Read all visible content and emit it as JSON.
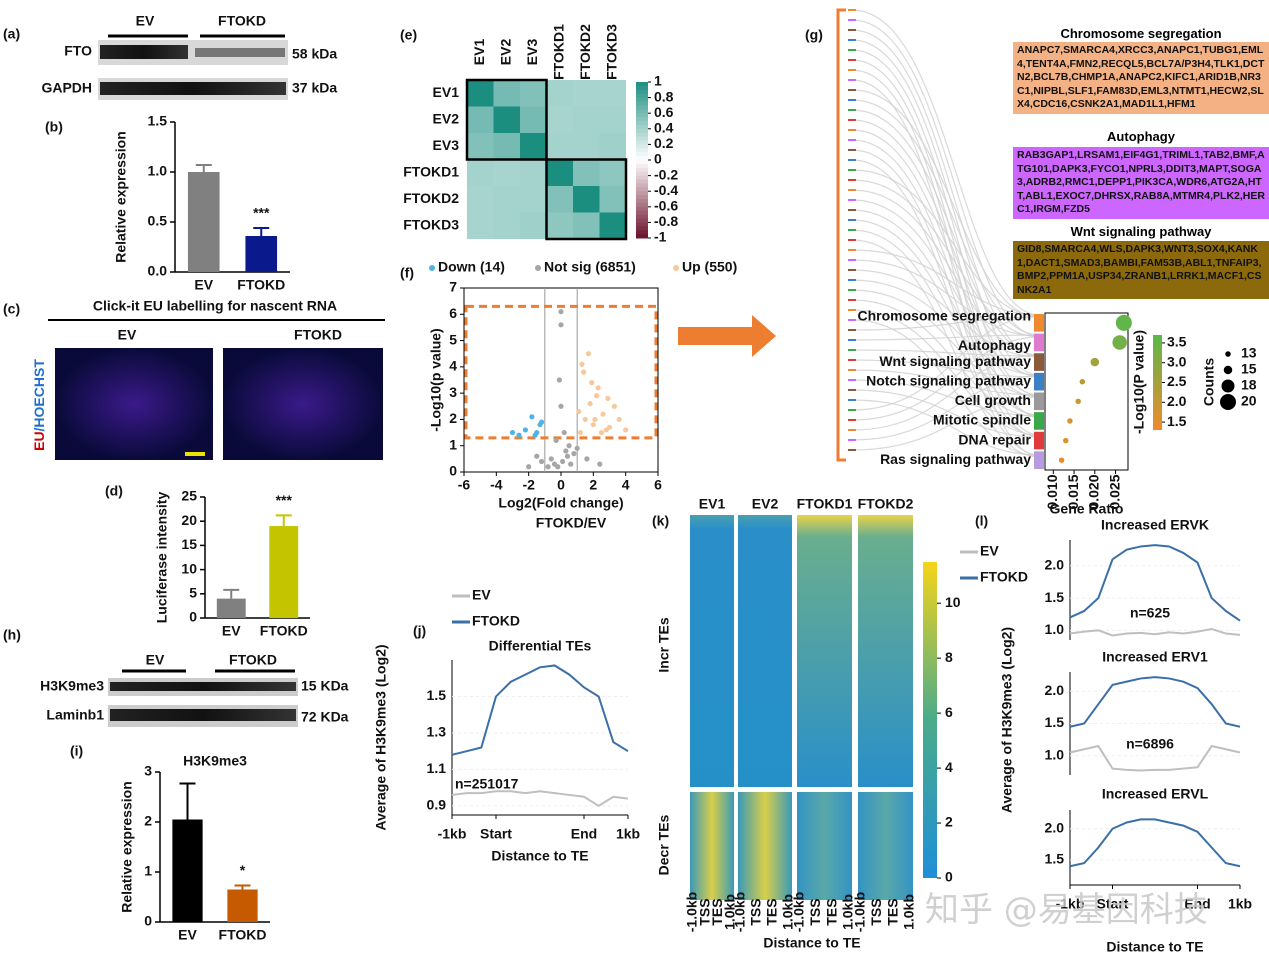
{
  "chart_data": [
    {
      "type": "bar",
      "categories": [
        "EV",
        "FTOKD"
      ],
      "values": [
        1.0,
        0.36
      ],
      "errors": [
        0.07,
        0.08
      ],
      "colors": [
        "#808080",
        "#0a1a8c"
      ],
      "ylim": [
        0,
        1.5
      ],
      "yticks": [
        {
          "value": 0,
          "label": "0.0"
        },
        {
          "value": 0.5,
          "label": "0.5"
        },
        {
          "value": 1,
          "label": "1.0"
        },
        {
          "value": 1.5,
          "label": "1.5"
        }
      ],
      "ylabel": "Relative expression",
      "annotation": "***"
    },
    {
      "type": "bar",
      "categories": [
        "EV",
        "FTOKD"
      ],
      "values": [
        4,
        19
      ],
      "errors": [
        1.8,
        2.2
      ],
      "colors": [
        "#808080",
        "#c4c400"
      ],
      "ylim": [
        0,
        25
      ],
      "yticks": [
        0,
        5,
        10,
        15,
        20,
        25
      ],
      "ylabel": "Luciferase intensity",
      "annotation": "***"
    },
    {
      "type": "bar",
      "title": "H3K9me3",
      "categories": [
        "EV",
        "FTOKD"
      ],
      "values": [
        2.05,
        0.65
      ],
      "errors": [
        0.72,
        0.08
      ],
      "colors": [
        "#000000",
        "#c55a00"
      ],
      "ylim": [
        0,
        3
      ],
      "yticks": [
        0,
        1,
        2,
        3
      ],
      "ylabel": "Relative expression",
      "annotation": "*"
    },
    {
      "type": "heatmap",
      "rows": [
        "EV1",
        "EV2",
        "EV3",
        "FTOKD1",
        "FTOKD2",
        "FTOKD3"
      ],
      "columns": [
        "EV1",
        "EV2",
        "EV3",
        "FTOKD1",
        "FTOKD2",
        "FTOKD3"
      ],
      "values": [
        [
          1,
          0.6,
          0.55,
          0.4,
          0.38,
          0.38
        ],
        [
          0.6,
          1,
          0.6,
          0.38,
          0.4,
          0.4
        ],
        [
          0.55,
          0.6,
          1,
          0.4,
          0.4,
          0.42
        ],
        [
          0.4,
          0.38,
          0.4,
          1,
          0.55,
          0.5
        ],
        [
          0.38,
          0.4,
          0.4,
          0.55,
          1,
          0.55
        ],
        [
          0.38,
          0.4,
          0.42,
          0.5,
          0.55,
          1
        ]
      ],
      "zlim": [
        -1,
        1
      ],
      "zticks": [
        1,
        0.8,
        0.6,
        0.4,
        0.2,
        0,
        -0.2,
        -0.4,
        -0.6,
        -0.8,
        -1
      ]
    },
    {
      "type": "scatter",
      "subtitle": "FTOKD/EV",
      "xlabel": "Log2(Fold change)",
      "ylabel": "-Log10(p value)",
      "xlim": [
        -6,
        6
      ],
      "xticks": [
        -6,
        -4,
        -2,
        0,
        2,
        4,
        6
      ],
      "ylim": [
        0,
        7
      ],
      "yticks": [
        0,
        1,
        2,
        3,
        4,
        5,
        6,
        7
      ],
      "thresholds_x": [
        -1,
        1
      ],
      "threshold_y": 1.3,
      "series": [
        {
          "name": "Down (14)",
          "color": "#4fb3e8",
          "x": [
            -1.5,
            -2.2,
            -1.8,
            -2.6,
            -1.3,
            -3.0,
            -1.6,
            -1.2
          ],
          "y": [
            1.5,
            1.6,
            2.1,
            1.4,
            1.8,
            1.5,
            1.4,
            1.9
          ]
        },
        {
          "name": "Not sig (6851)",
          "color": "#a6a6a6",
          "x": [
            -0.2,
            0.1,
            0.3,
            -0.4,
            0.5,
            -0.6,
            0.2,
            0,
            -0.1,
            0.4,
            -0.8,
            0.8,
            -1.2,
            1.0,
            -0.3,
            0.6,
            -2,
            1.6,
            2.4,
            -1.5,
            0,
            0
          ],
          "y": [
            0.2,
            0.4,
            0.8,
            0.3,
            1.0,
            0.5,
            1.5,
            2.5,
            3.5,
            0.6,
            0.2,
            0.7,
            0.4,
            0.9,
            1.2,
            0.3,
            0.2,
            0.5,
            0.3,
            0.6,
            5.6,
            6.1
          ]
        },
        {
          "name": "Up (550)",
          "color": "#f7c89b",
          "x": [
            1.2,
            1.5,
            1.8,
            2.0,
            2.3,
            2.6,
            3.0,
            3.3,
            1.4,
            1.7,
            2.2,
            2.8,
            3.6,
            1.1,
            1.9,
            2.5,
            4.0,
            1.3,
            2.1,
            2.9
          ],
          "y": [
            1.5,
            2.0,
            2.6,
            1.8,
            3.2,
            2.2,
            1.7,
            2.5,
            3.8,
            4.5,
            2.9,
            1.6,
            2.0,
            2.3,
            3.4,
            1.5,
            1.6,
            4.1,
            2.0,
            2.8
          ]
        }
      ]
    },
    {
      "type": "dot",
      "categories": [
        "Chromosome segregation",
        "Autophagy",
        "Wnt signaling pathway",
        "Notch signaling pathway",
        "Cell growth",
        "Mitotic spindle",
        "DNA repair",
        "Ras signaling pathway"
      ],
      "category_colors": [
        "#f08a2c",
        "#e07ad0",
        "#8b5a3c",
        "#3b7fc4",
        "#9a9a9a",
        "#3aa84a",
        "#e03a3a",
        "#b89ae0"
      ],
      "x": [
        0.027,
        0.026,
        0.02,
        0.017,
        0.016,
        0.014,
        0.013,
        0.012
      ],
      "pvalues": [
        3.6,
        3.3,
        2.6,
        2.2,
        1.9,
        1.7,
        1.6,
        1.4
      ],
      "sizes": [
        20,
        19,
        15,
        13,
        13,
        13,
        13,
        13
      ],
      "xlim": [
        0.008,
        0.028
      ],
      "xticks": [
        {
          "value": 0.01,
          "label": "0.010"
        },
        0.015,
        {
          "value": 0.02,
          "label": "0.020"
        },
        0.025
      ],
      "xlabel": "Gene Ratio",
      "clim": [
        1.3,
        3.7
      ],
      "cticks": [
        {
          "value": 1.5,
          "label": "1.5"
        },
        {
          "value": 2,
          "label": "2.0"
        },
        {
          "value": 2.5,
          "label": "2.5"
        },
        {
          "value": 3,
          "label": "3.0"
        },
        {
          "value": 3.5,
          "label": "3.5"
        }
      ],
      "ctitle": "-Log10(P value)",
      "size_title": "Counts",
      "size_ticks": [
        13,
        15,
        18,
        20
      ]
    },
    {
      "type": "line",
      "title": "Differential TEs",
      "annotation": "n=251017",
      "xlabel": "Distance to TE",
      "ylabel": "Average of H3K9me3 (Log2)",
      "legend": "top-left",
      "x": [
        0,
        1,
        2,
        3,
        4,
        5,
        6,
        7,
        8,
        9,
        10,
        11,
        12
      ],
      "xlim": [
        0,
        12
      ],
      "xticks": [
        {
          "value": 0,
          "label": "-1kb"
        },
        {
          "value": 3,
          "label": "Start"
        },
        {
          "value": 9,
          "label": "End"
        },
        {
          "value": 12,
          "label": "1kb"
        }
      ],
      "ylim": [
        0.85,
        1.7
      ],
      "yticks": [
        0.9,
        1.1,
        1.3,
        1.5
      ],
      "series": [
        {
          "name": "EV",
          "color": "#bfbfbf",
          "values": [
            0.96,
            0.97,
            0.97,
            0.98,
            0.98,
            0.97,
            0.98,
            0.97,
            0.96,
            0.95,
            0.9,
            0.95,
            0.94
          ]
        },
        {
          "name": "FTOKD",
          "color": "#3a6fa8",
          "values": [
            1.18,
            1.2,
            1.22,
            1.5,
            1.58,
            1.62,
            1.66,
            1.67,
            1.62,
            1.55,
            1.5,
            1.25,
            1.2
          ]
        }
      ]
    },
    {
      "type": "line",
      "title": "Increased ERVK",
      "annotation": "n=625",
      "ylabel": "Average of H3K9me3 (Log2)",
      "legend": "top-left",
      "x": [
        0,
        1,
        2,
        3,
        4,
        5,
        6,
        7,
        8,
        9,
        10,
        11,
        12
      ],
      "xlim": [
        0,
        12
      ],
      "ylim": [
        0.85,
        2.4
      ],
      "yticks": [
        {
          "value": 1,
          "label": "1.0"
        },
        1.5,
        {
          "value": 2,
          "label": "2.0"
        }
      ],
      "series": [
        {
          "name": "EV",
          "color": "#bfbfbf",
          "values": [
            0.95,
            0.98,
            1.0,
            0.92,
            0.95,
            0.96,
            0.94,
            0.97,
            0.95,
            0.98,
            1.02,
            0.95,
            0.93
          ]
        },
        {
          "name": "FTOKD",
          "color": "#3a6fa8",
          "values": [
            1.2,
            1.3,
            1.5,
            2.1,
            2.25,
            2.3,
            2.32,
            2.3,
            2.2,
            2.05,
            1.5,
            1.3,
            1.15
          ]
        }
      ]
    },
    {
      "type": "line",
      "title": "Increased ERV1",
      "annotation": "n=6896",
      "x": [
        0,
        1,
        2,
        3,
        4,
        5,
        6,
        7,
        8,
        9,
        10,
        11,
        12
      ],
      "xlim": [
        0,
        12
      ],
      "ylim": [
        0.7,
        2.3
      ],
      "yticks": [
        {
          "value": 1,
          "label": "1.0"
        },
        1.5,
        {
          "value": 2,
          "label": "2.0"
        }
      ],
      "series": [
        {
          "name": "EV",
          "color": "#bfbfbf",
          "values": [
            1.05,
            1.1,
            1.15,
            0.8,
            0.78,
            0.77,
            0.78,
            0.78,
            0.8,
            0.82,
            1.15,
            1.1,
            1.05
          ]
        },
        {
          "name": "FTOKD",
          "color": "#3a6fa8",
          "values": [
            1.45,
            1.5,
            1.8,
            2.1,
            2.15,
            2.2,
            2.22,
            2.2,
            2.15,
            2.05,
            1.8,
            1.5,
            1.45
          ]
        }
      ]
    },
    {
      "type": "line",
      "title": "Increased ERVL",
      "xlabel": "Distance to TE",
      "x": [
        0,
        1,
        2,
        3,
        4,
        5,
        6,
        7,
        8,
        9,
        10,
        11,
        12
      ],
      "xlim": [
        0,
        12
      ],
      "xticks": [
        {
          "value": 0,
          "label": "-1kb"
        },
        {
          "value": 3,
          "label": "Start"
        },
        {
          "value": 9,
          "label": "End"
        },
        {
          "value": 12,
          "label": "1kb"
        }
      ],
      "ylim": [
        1.1,
        2.3
      ],
      "yticks": [
        1.5,
        {
          "value": 2,
          "label": "2.0"
        }
      ],
      "series": [
        {
          "name": "FTOKD",
          "color": "#3a6fa8",
          "values": [
            1.4,
            1.45,
            1.7,
            2.0,
            2.1,
            2.15,
            2.15,
            2.1,
            2.05,
            1.95,
            1.7,
            1.45,
            1.4
          ]
        }
      ]
    },
    {
      "type": "heatmap-image",
      "columns": [
        "EV1",
        "EV2",
        "FTOKD1",
        "FTOKD2"
      ],
      "rows": [
        "Incr TEs",
        "Decr TEs"
      ],
      "xticks": [
        "-1.0kb",
        "TSS",
        "TES",
        "1.0kb"
      ],
      "xlabel": "Distance to TE",
      "zlim": [
        0,
        11.5
      ],
      "zticks": [
        0,
        2,
        4,
        6,
        8,
        10
      ]
    }
  ],
  "labels": {
    "panels": [
      "(a)",
      "(b)",
      "(c)",
      "(d)",
      "(e)",
      "(f)",
      "(g)",
      "(h)",
      "(i)",
      "(j)",
      "(k)",
      "(l)"
    ],
    "blot_a": {
      "groups": [
        "EV",
        "FTOKD"
      ],
      "rows": [
        "FTO",
        "GAPDH"
      ],
      "sizes": [
        "58 kDa",
        "37 kDa"
      ]
    },
    "imaging_c": {
      "title": "Click-it EU labelling for nascent RNA",
      "groups": [
        "EV",
        "FTOKD"
      ],
      "stain_red": "EU",
      "stain_blue": "/HOECHST"
    },
    "blot_h": {
      "groups": [
        "EV",
        "FTOKD"
      ],
      "rows": [
        "H3K9me3",
        "Laminb1"
      ],
      "sizes": [
        "15 KDa",
        "72 KDa"
      ]
    },
    "gene_sets": [
      {
        "name": "Chromosome segregation",
        "color": "#f4b183",
        "genes": "ANAPC7,SMARCA4,XRCC3,ANAPC1,TUBG1,EML4,TENT4A,FMN2,RECQL5,BCL7A/P3H4,TLK1,DCTN2,BCL7B,CHMP1A,ANAPC2,KIFC1,ARID1B,NR3C1,NIPBL,SLF1,FAM83D,EML3,NTMT1,HECW2,SLX4,CDC16,CSNK2A1,MAD1L1,HFM1"
      },
      {
        "name": "Autophagy",
        "color": "#cc66ff",
        "genes": "RAB3GAP1,LRSAM1,EIF4G1,TRIML1,TAB2,BMF,ATG101,DAPK3,FYCO1,NPRL3,DDIT3,MAPT,SOGA3,ADRB2,RMC1,DEPP1,PIK3CA,WDR6,ATG2A,HTT,ABL1,EXOC7,DHRSX,RAB8A,MTMR4,PLK2,HERC1,IRGM,FZD5"
      },
      {
        "name": "Wnt signaling pathway",
        "color": "#8c6a0c",
        "genes": "GID8,SMARCA4,WLS,DAPK3,WNT3,SOX4,KANK1,DACT1,SMAD3,BAMBI,FAM53B,ABL1,TNFAIP3,BMP2,PPM1A,USP34,ZRANB1,LRRK1,MACF1,CSNK2A1"
      }
    ],
    "watermark": "知乎 @易基因科技"
  }
}
